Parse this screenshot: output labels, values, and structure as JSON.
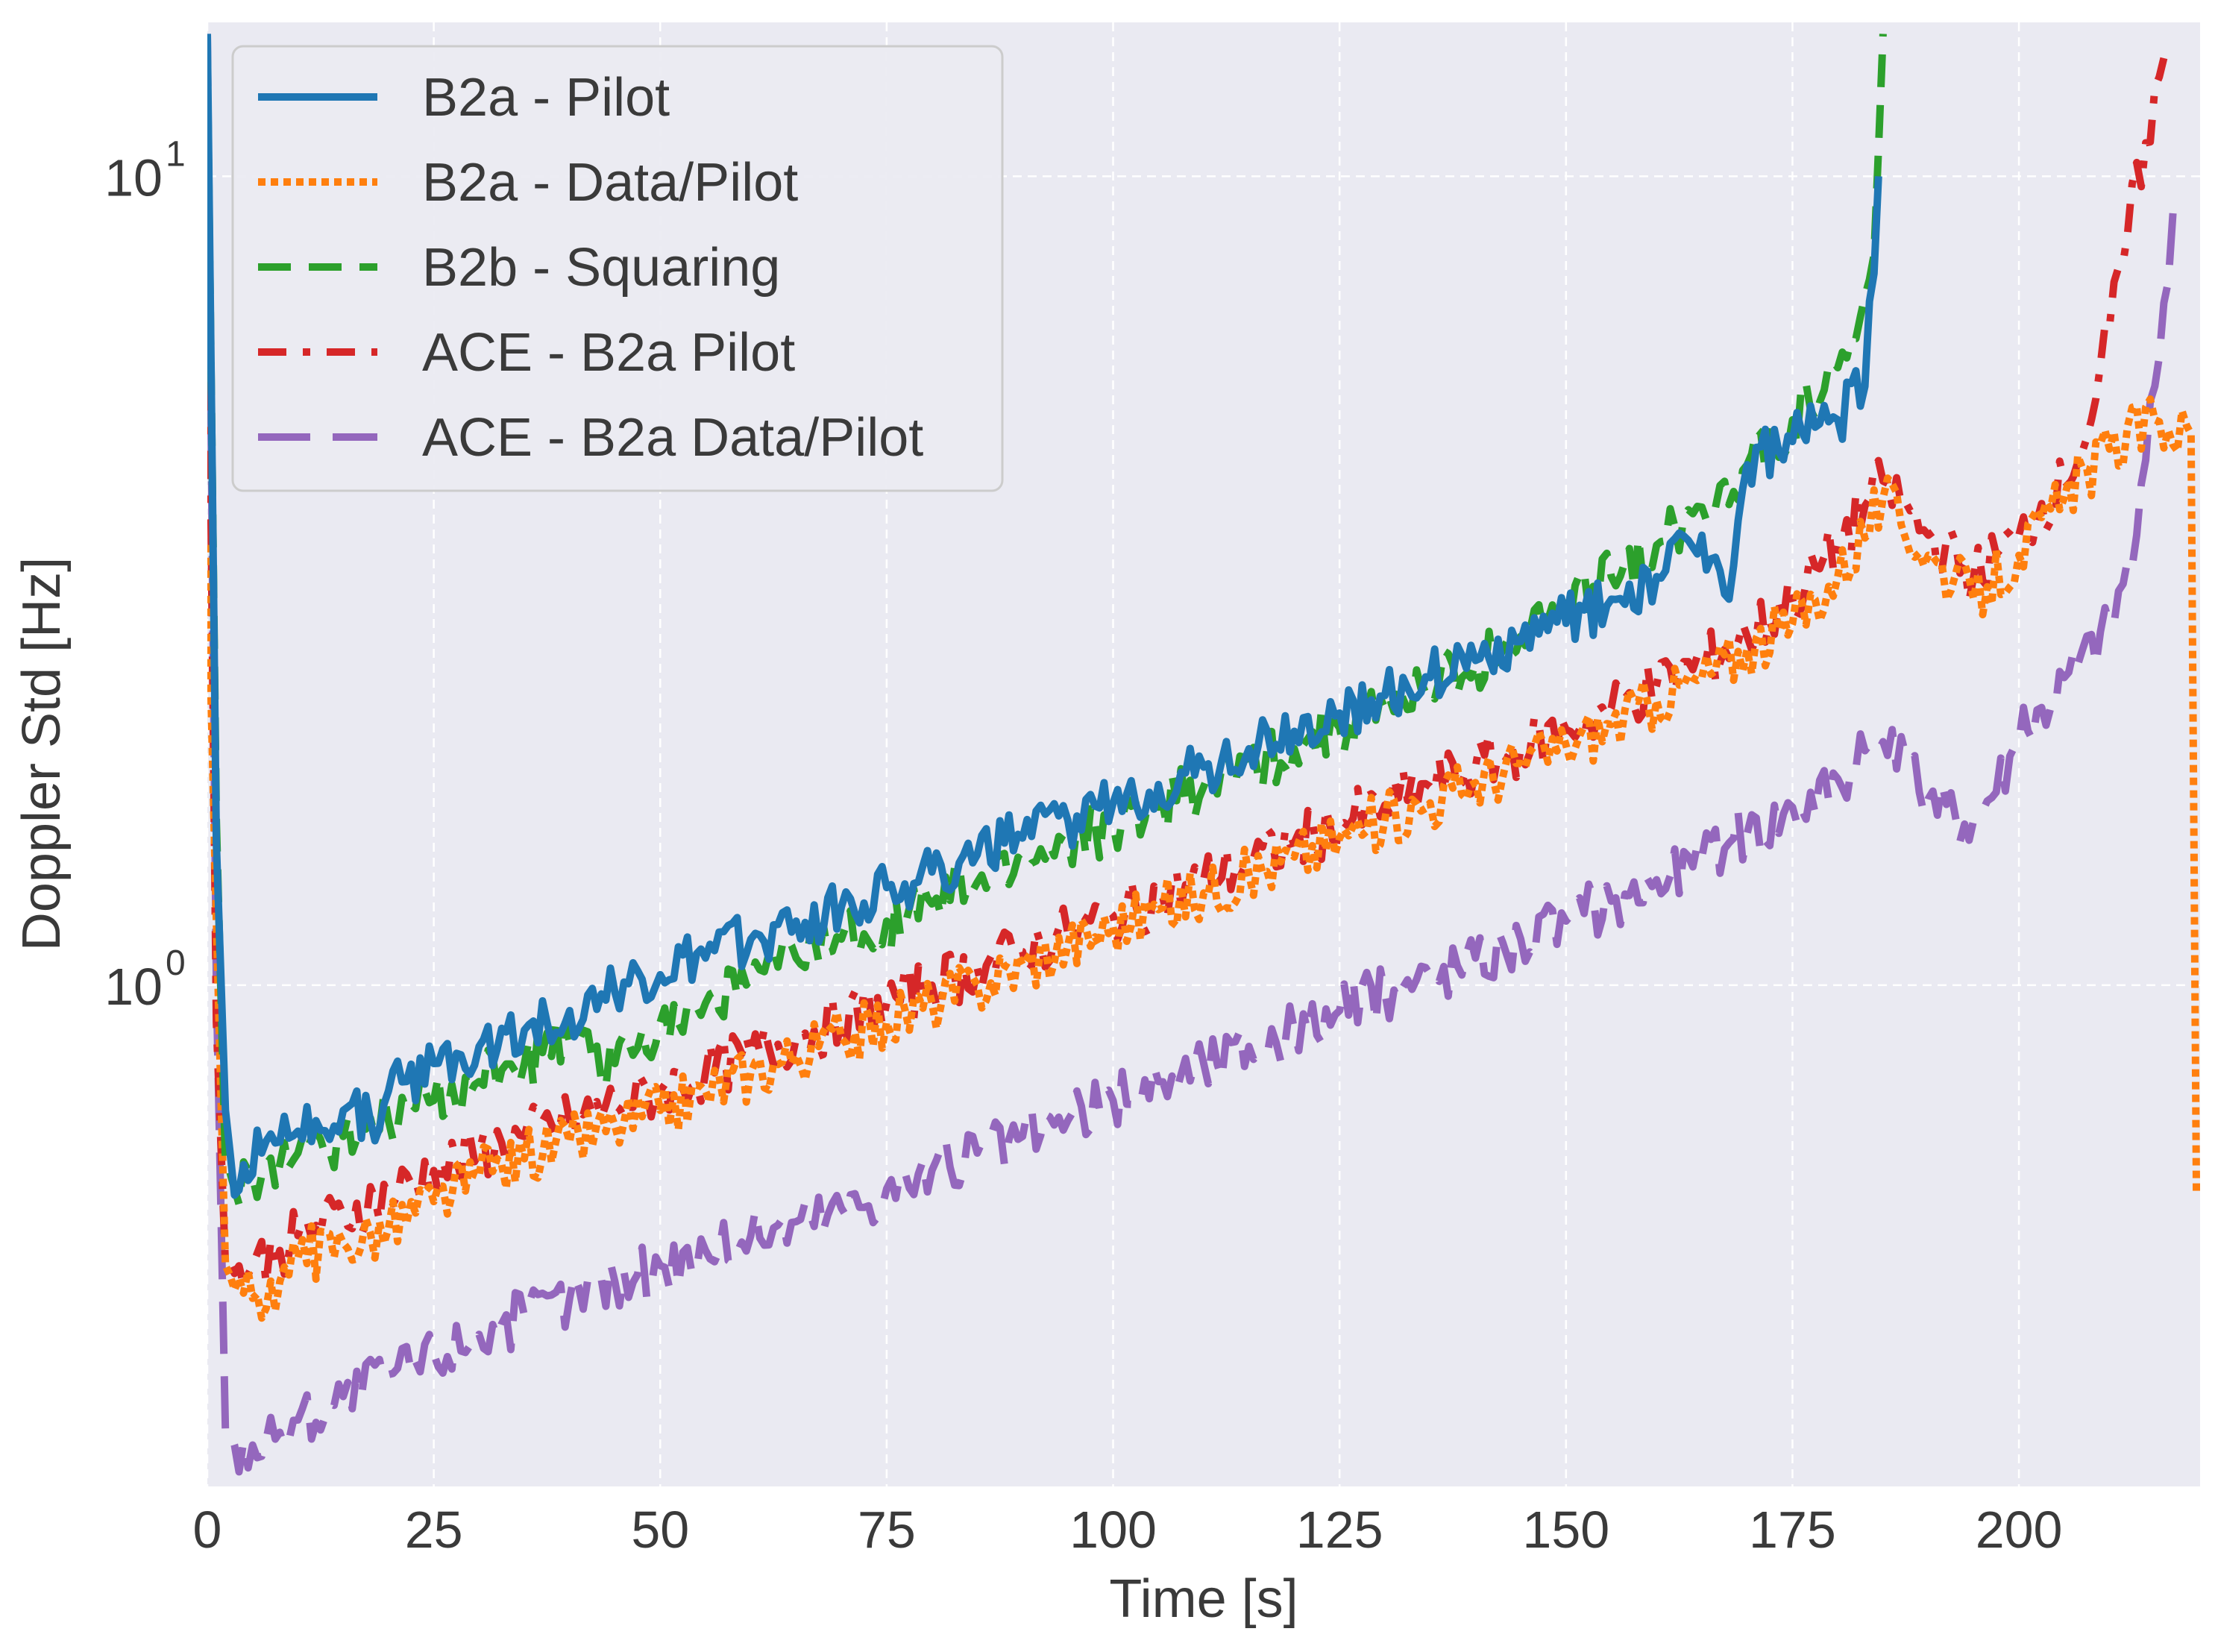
{
  "chart_data": {
    "type": "line",
    "title": "",
    "xlabel": "Time [s]",
    "ylabel": "Doppler Std [Hz]",
    "xlim": [
      0,
      220
    ],
    "ylim": [
      0.24,
      15.5
    ],
    "yscale": "log",
    "grid": true,
    "legend_position": "top-left",
    "xticks": [
      0,
      25,
      50,
      75,
      100,
      125,
      150,
      175,
      200
    ],
    "xtick_labels": [
      "0",
      "25",
      "50",
      "75",
      "100",
      "125",
      "150",
      "175",
      "200"
    ],
    "yticks": [
      1,
      10
    ],
    "ytick_labels": [
      {
        "base": "10",
        "exp": "0"
      },
      {
        "base": "10",
        "exp": "1"
      }
    ],
    "colors": {
      "background": "#eaeaf2",
      "grid": "#ffffff"
    },
    "series": [
      {
        "name": "B2a - Pilot",
        "color": "#1f77b4",
        "style": "solid",
        "x": [
          0,
          1,
          2,
          3,
          4,
          6,
          8,
          10,
          12,
          15,
          18,
          20,
          22,
          25,
          28,
          30,
          35,
          40,
          45,
          50,
          55,
          60,
          65,
          70,
          75,
          80,
          85,
          90,
          95,
          100,
          105,
          110,
          115,
          120,
          125,
          130,
          135,
          140,
          145,
          150,
          155,
          160,
          165,
          168,
          170,
          175,
          180,
          183,
          184.5
        ],
        "y": [
          15,
          1.5,
          0.7,
          0.55,
          0.6,
          0.62,
          0.64,
          0.66,
          0.68,
          0.7,
          0.68,
          0.74,
          0.76,
          0.8,
          0.82,
          0.84,
          0.88,
          0.93,
          0.98,
          1.03,
          1.08,
          1.14,
          1.2,
          1.25,
          1.32,
          1.38,
          1.45,
          1.52,
          1.6,
          1.68,
          1.77,
          1.86,
          1.96,
          2.06,
          2.17,
          2.28,
          2.4,
          2.52,
          2.66,
          2.8,
          3.0,
          3.2,
          3.6,
          3.0,
          4.4,
          4.7,
          5.0,
          5.5,
          10.0
        ]
      },
      {
        "name": "B2a - Data/Pilot",
        "color": "#ff7f0e",
        "style": "dotted",
        "x": [
          0,
          1,
          2,
          3,
          5,
          8,
          10,
          15,
          20,
          25,
          30,
          35,
          40,
          45,
          50,
          55,
          60,
          65,
          70,
          75,
          80,
          85,
          90,
          95,
          100,
          105,
          110,
          115,
          120,
          125,
          130,
          135,
          140,
          145,
          150,
          155,
          160,
          165,
          170,
          175,
          180,
          185,
          190,
          195,
          200,
          205,
          210,
          215,
          219,
          219.6
        ],
        "y": [
          3.5,
          1.2,
          0.45,
          0.42,
          0.41,
          0.43,
          0.46,
          0.48,
          0.5,
          0.54,
          0.58,
          0.61,
          0.64,
          0.67,
          0.7,
          0.74,
          0.78,
          0.82,
          0.86,
          0.9,
          0.95,
          1.0,
          1.06,
          1.12,
          1.18,
          1.24,
          1.3,
          1.37,
          1.44,
          1.52,
          1.6,
          1.68,
          1.78,
          1.88,
          1.98,
          2.1,
          2.25,
          2.4,
          2.6,
          2.8,
          3.2,
          4.0,
          3.4,
          3.0,
          3.4,
          4.0,
          4.6,
          5.0,
          4.8,
          0.55
        ]
      },
      {
        "name": "B2b - Squaring",
        "color": "#2ca02c",
        "style": "dashed",
        "x": [
          0,
          1,
          2,
          3,
          5,
          8,
          10,
          15,
          20,
          25,
          30,
          35,
          40,
          45,
          50,
          55,
          60,
          65,
          70,
          75,
          80,
          85,
          90,
          95,
          100,
          105,
          110,
          115,
          120,
          125,
          130,
          135,
          140,
          145,
          150,
          155,
          160,
          165,
          170,
          175,
          180,
          182,
          184,
          185
        ],
        "y": [
          14,
          1.6,
          0.6,
          0.56,
          0.58,
          0.6,
          0.62,
          0.65,
          0.68,
          0.72,
          0.76,
          0.8,
          0.85,
          0.8,
          0.9,
          0.95,
          1.02,
          1.08,
          1.14,
          1.2,
          1.26,
          1.34,
          1.42,
          1.5,
          1.58,
          1.66,
          1.76,
          1.86,
          1.96,
          2.08,
          2.2,
          2.35,
          2.5,
          2.7,
          2.9,
          3.2,
          3.5,
          3.9,
          4.4,
          5.0,
          5.8,
          6.3,
          8.0,
          15.0
        ]
      },
      {
        "name": "ACE - B2a Pilot",
        "color": "#d62728",
        "style": "dashdot",
        "x": [
          0,
          1,
          2,
          3,
          5,
          8,
          10,
          15,
          20,
          25,
          30,
          35,
          40,
          45,
          50,
          55,
          60,
          65,
          70,
          75,
          80,
          85,
          90,
          95,
          100,
          105,
          110,
          115,
          120,
          125,
          130,
          135,
          140,
          145,
          150,
          155,
          160,
          165,
          170,
          175,
          180,
          185,
          190,
          195,
          200,
          205,
          208,
          210,
          212,
          214,
          216
        ],
        "y": [
          10,
          0.9,
          0.45,
          0.44,
          0.45,
          0.47,
          0.49,
          0.52,
          0.55,
          0.59,
          0.62,
          0.65,
          0.68,
          0.71,
          0.74,
          0.78,
          0.82,
          0.86,
          0.9,
          0.95,
          1.0,
          1.05,
          1.1,
          1.16,
          1.22,
          1.28,
          1.35,
          1.42,
          1.5,
          1.58,
          1.67,
          1.76,
          1.86,
          1.96,
          2.07,
          2.2,
          2.35,
          2.5,
          2.7,
          3.0,
          3.5,
          4.2,
          3.6,
          3.2,
          3.6,
          4.2,
          5.0,
          6.5,
          8.5,
          11.0,
          14.0
        ]
      },
      {
        "name": "ACE - B2a Data/Pilot",
        "color": "#9467bd",
        "style": "longdash",
        "x": [
          0,
          1,
          2,
          3,
          5,
          8,
          10,
          15,
          20,
          25,
          30,
          35,
          40,
          45,
          50,
          55,
          60,
          65,
          70,
          75,
          80,
          85,
          90,
          95,
          100,
          105,
          110,
          115,
          120,
          125,
          130,
          135,
          140,
          145,
          150,
          155,
          160,
          165,
          170,
          175,
          180,
          185,
          190,
          195,
          200,
          205,
          210,
          213,
          215,
          217
        ],
        "y": [
          15,
          1.0,
          0.28,
          0.27,
          0.27,
          0.28,
          0.29,
          0.31,
          0.33,
          0.35,
          0.37,
          0.39,
          0.41,
          0.43,
          0.45,
          0.47,
          0.49,
          0.51,
          0.53,
          0.56,
          0.59,
          0.62,
          0.65,
          0.68,
          0.72,
          0.76,
          0.8,
          0.84,
          0.88,
          0.93,
          0.98,
          1.03,
          1.08,
          1.14,
          1.2,
          1.27,
          1.35,
          1.44,
          1.54,
          1.66,
          1.8,
          2.0,
          1.7,
          1.6,
          2.0,
          2.4,
          2.8,
          3.6,
          5.5,
          9.0
        ]
      }
    ]
  }
}
